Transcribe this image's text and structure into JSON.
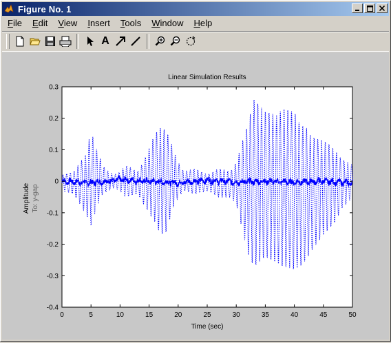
{
  "window": {
    "title": "Figure No. 1",
    "buttons": [
      "minimize",
      "maximize",
      "close"
    ]
  },
  "menu": [
    {
      "label": "File",
      "accel": "F",
      "rest": "ile"
    },
    {
      "label": "Edit",
      "accel": "E",
      "rest": "dit"
    },
    {
      "label": "View",
      "accel": "V",
      "rest": "iew"
    },
    {
      "label": "Insert",
      "accel": "I",
      "rest": "nsert"
    },
    {
      "label": "Tools",
      "accel": "T",
      "rest": "ools"
    },
    {
      "label": "Window",
      "accel": "W",
      "rest": "indow"
    },
    {
      "label": "Help",
      "accel": "H",
      "rest": "elp"
    }
  ],
  "toolbar": {
    "icons": [
      "new-file-icon",
      "open-folder-icon",
      "save-icon",
      "print-icon",
      "select-arrow-icon",
      "insert-text-icon",
      "insert-arrow-icon",
      "insert-line-icon",
      "zoom-in-icon",
      "zoom-out-icon",
      "rotate-icon"
    ],
    "text_tool_label": "A"
  },
  "colors": {
    "accent": "#0000ff",
    "titlebar_start": "#0a246a",
    "titlebar_end": "#a6caf0",
    "figure_bg": "#c8c8c8"
  },
  "chart_data": {
    "type": "line",
    "title": "Linear Simulation Results",
    "xlabel": "Time (sec)",
    "ylabel": "Amplitude",
    "ylabel2": "To: y-gap",
    "xlim": [
      0,
      50
    ],
    "ylim": [
      -0.4,
      0.3
    ],
    "xticks": [
      "0",
      "5",
      "10",
      "15",
      "20",
      "25",
      "30",
      "35",
      "40",
      "45",
      "50"
    ],
    "yticks": [
      "0.3",
      "0.2",
      "0.1",
      "0",
      "-0.1",
      "-0.2",
      "-0.3",
      "-0.4"
    ],
    "grid": false,
    "series": [
      {
        "style": "dotted",
        "color": "#0000ff",
        "t": [
          0,
          2,
          4,
          5,
          6,
          7,
          8,
          9,
          10,
          11,
          13,
          14,
          16,
          17,
          18,
          19,
          20,
          21,
          23,
          25,
          27,
          29,
          30,
          32,
          33,
          35,
          37,
          38,
          40,
          41,
          42,
          43,
          45,
          47,
          48,
          50
        ],
        "env_upper": [
          0.02,
          0.03,
          0.08,
          0.16,
          0.1,
          0.05,
          0.03,
          0.02,
          0.03,
          0.05,
          0.03,
          0.06,
          0.15,
          0.17,
          0.16,
          0.11,
          0.06,
          0.03,
          0.04,
          0.02,
          0.04,
          0.03,
          0.06,
          0.18,
          0.26,
          0.22,
          0.21,
          0.23,
          0.22,
          0.18,
          0.17,
          0.14,
          0.13,
          0.1,
          0.07,
          0.05
        ],
        "env_lower": [
          -0.03,
          -0.04,
          -0.1,
          -0.14,
          -0.08,
          -0.04,
          -0.03,
          -0.02,
          -0.03,
          -0.05,
          -0.04,
          -0.07,
          -0.13,
          -0.17,
          -0.16,
          -0.09,
          -0.05,
          -0.03,
          -0.04,
          -0.03,
          -0.05,
          -0.05,
          -0.07,
          -0.23,
          -0.27,
          -0.24,
          -0.26,
          -0.27,
          -0.28,
          -0.27,
          -0.25,
          -0.22,
          -0.17,
          -0.13,
          -0.09,
          -0.05
        ],
        "freq_hz": 1.55
      },
      {
        "style": "solid",
        "color": "#0000ff",
        "t": [
          0,
          5,
          10,
          15,
          20,
          25,
          30,
          35,
          40,
          45,
          50
        ],
        "y": [
          0.0,
          -0.005,
          0.005,
          0.0,
          -0.005,
          0.003,
          -0.003,
          0.0,
          -0.003,
          0.0,
          -0.006
        ],
        "noise": 0.01
      }
    ]
  }
}
